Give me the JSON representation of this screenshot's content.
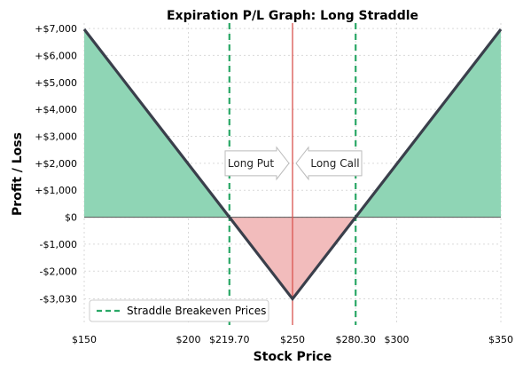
{
  "chart_data": {
    "type": "line",
    "title": "Expiration P/L Graph: Long Straddle",
    "xlabel": "Stock Price",
    "ylabel": "Profit / Loss",
    "xlim": [
      150,
      350
    ],
    "ylim": [
      -4000,
      7200
    ],
    "x_ticks": [
      {
        "value": 150,
        "label": "$150"
      },
      {
        "value": 200,
        "label": "$200"
      },
      {
        "value": 219.7,
        "label": "$219.70"
      },
      {
        "value": 250,
        "label": "$250"
      },
      {
        "value": 280.3,
        "label": "$280.30"
      },
      {
        "value": 300,
        "label": "$300"
      },
      {
        "value": 350,
        "label": "$350"
      }
    ],
    "y_ticks": [
      {
        "value": 7000,
        "label": "+$7,000"
      },
      {
        "value": 6000,
        "label": "+$6,000"
      },
      {
        "value": 5000,
        "label": "+$5,000"
      },
      {
        "value": 4000,
        "label": "+$4,000"
      },
      {
        "value": 3000,
        "label": "+$3,000"
      },
      {
        "value": 2000,
        "label": "+$2,000"
      },
      {
        "value": 1000,
        "label": "+$1,000"
      },
      {
        "value": 0,
        "label": "$0"
      },
      {
        "value": -1000,
        "label": "-$1,000"
      },
      {
        "value": -2000,
        "label": "-$2,000"
      },
      {
        "value": -3030,
        "label": "-$3,030"
      }
    ],
    "series": [
      {
        "x": [
          150,
          250,
          350
        ],
        "y": [
          6970,
          -3030,
          6970
        ]
      }
    ],
    "strike": 250,
    "breakevens": [
      219.7,
      280.3
    ],
    "legend": {
      "label": "Straddle Breakeven Prices",
      "position": "lower-left"
    },
    "annotations": [
      {
        "text": "Long Put",
        "direction": "right"
      },
      {
        "text": "Long Call",
        "direction": "left"
      }
    ],
    "grid": true,
    "colors": {
      "profit_fill": "#8fd5b5",
      "loss_fill": "#f2bcbc",
      "pl_line": "#3a3f4b",
      "strike_line": "#d9534f",
      "breakeven_line": "#2aa866",
      "zero_line": "#555555"
    }
  }
}
